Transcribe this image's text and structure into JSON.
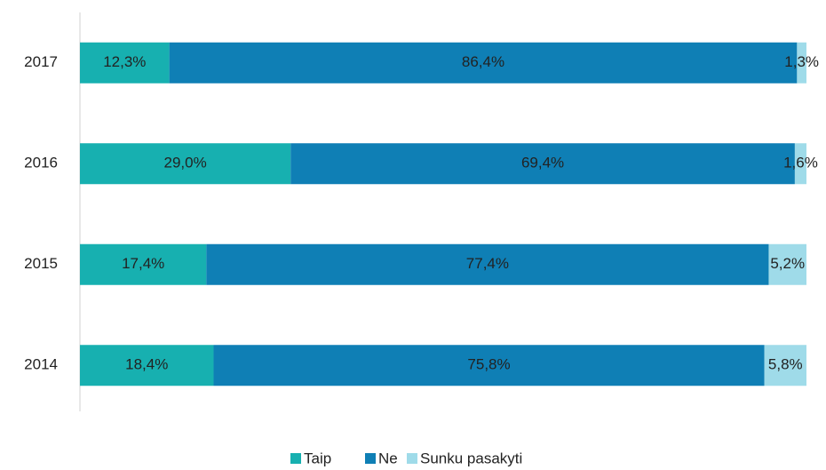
{
  "chart_data": {
    "type": "stacked-bar-horizontal",
    "categories": [
      "2017",
      "2016",
      "2015",
      "2014"
    ],
    "series": [
      {
        "name": "Taip",
        "color": "#17b0b0",
        "values": [
          12.3,
          29.0,
          17.4,
          18.4
        ],
        "value_labels": [
          "12,3%",
          "29,0%",
          "17,4%",
          "18,4%"
        ]
      },
      {
        "name": "Ne",
        "color": "#0f7fb5",
        "values": [
          86.4,
          69.4,
          77.4,
          75.8
        ],
        "value_labels": [
          "86,4%",
          "69,4%",
          "77,4%",
          "75,8%"
        ]
      },
      {
        "name": "Sunku pasakyti",
        "color": "#9fdbe9",
        "values": [
          1.3,
          1.6,
          5.2,
          5.8
        ],
        "value_labels": [
          "1,3%",
          "1,6%",
          "5,2%",
          "5,8%"
        ]
      }
    ],
    "xlim": [
      0,
      100
    ]
  }
}
